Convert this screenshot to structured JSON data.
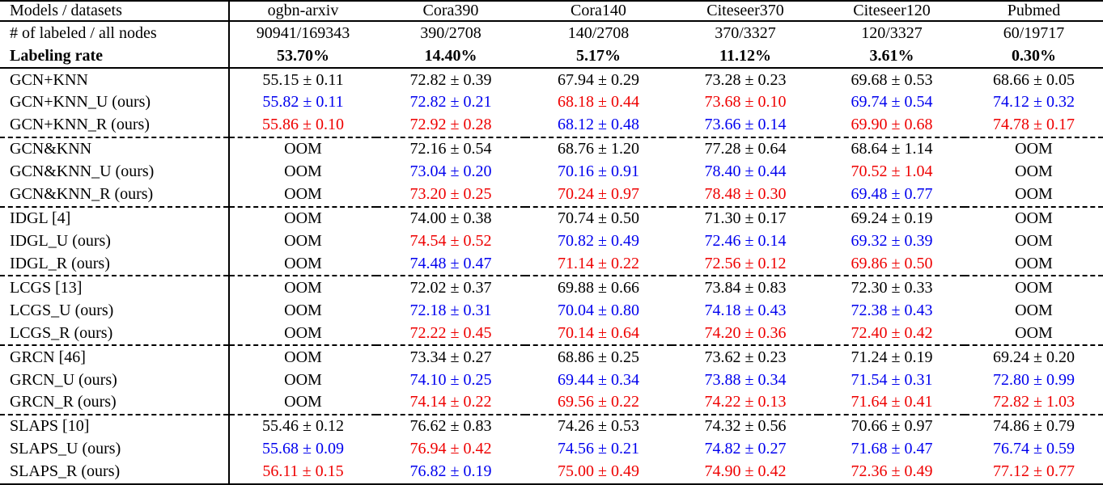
{
  "colors": {
    "black": "#000000",
    "blue": "#0000ee",
    "red": "#ee0000"
  },
  "table": {
    "columns": [
      "Models / datasets",
      "ogbn-arxiv",
      "Cora390",
      "Cora140",
      "Citeseer370",
      "Citeseer120",
      "Pubmed"
    ],
    "info_rows": [
      {
        "label": "# of labeled / all nodes",
        "bold": false,
        "values": [
          "90941/169343",
          "390/2708",
          "140/2708",
          "370/3327",
          "120/3327",
          "60/19717"
        ]
      },
      {
        "label": "Labeling rate",
        "bold": true,
        "values": [
          "53.70%",
          "14.40%",
          "5.17%",
          "11.12%",
          "3.61%",
          "0.30%"
        ]
      }
    ],
    "groups": [
      {
        "rows": [
          {
            "label": "GCN+KNN",
            "cells": [
              {
                "v": "55.15 ± 0.11",
                "c": "black"
              },
              {
                "v": "72.82 ± 0.39",
                "c": "black"
              },
              {
                "v": "67.94 ± 0.29",
                "c": "black"
              },
              {
                "v": "73.28 ± 0.23",
                "c": "black"
              },
              {
                "v": "69.68 ± 0.53",
                "c": "black"
              },
              {
                "v": "68.66 ± 0.05",
                "c": "black"
              }
            ]
          },
          {
            "label": "GCN+KNN_U (ours)",
            "cells": [
              {
                "v": "55.82 ± 0.11",
                "c": "blue"
              },
              {
                "v": "72.82 ± 0.21",
                "c": "blue"
              },
              {
                "v": "68.18 ± 0.44",
                "c": "red"
              },
              {
                "v": "73.68 ± 0.10",
                "c": "red"
              },
              {
                "v": "69.74 ± 0.54",
                "c": "blue"
              },
              {
                "v": "74.12 ± 0.32",
                "c": "blue"
              }
            ]
          },
          {
            "label": "GCN+KNN_R (ours)",
            "cells": [
              {
                "v": "55.86 ± 0.10",
                "c": "red"
              },
              {
                "v": "72.92 ± 0.28",
                "c": "red"
              },
              {
                "v": "68.12 ± 0.48",
                "c": "blue"
              },
              {
                "v": "73.66 ± 0.14",
                "c": "blue"
              },
              {
                "v": "69.90 ± 0.68",
                "c": "red"
              },
              {
                "v": "74.78 ± 0.17",
                "c": "red"
              }
            ]
          }
        ]
      },
      {
        "rows": [
          {
            "label": "GCN&KNN",
            "cells": [
              {
                "v": "OOM",
                "c": "black"
              },
              {
                "v": "72.16 ± 0.54",
                "c": "black"
              },
              {
                "v": "68.76 ± 1.20",
                "c": "black"
              },
              {
                "v": "77.28 ± 0.64",
                "c": "black"
              },
              {
                "v": "68.64 ± 1.14",
                "c": "black"
              },
              {
                "v": "OOM",
                "c": "black"
              }
            ]
          },
          {
            "label": "GCN&KNN_U (ours)",
            "cells": [
              {
                "v": "OOM",
                "c": "black"
              },
              {
                "v": "73.04 ± 0.20",
                "c": "blue"
              },
              {
                "v": "70.16 ± 0.91",
                "c": "blue"
              },
              {
                "v": "78.40 ± 0.44",
                "c": "blue"
              },
              {
                "v": "70.52 ± 1.04",
                "c": "red"
              },
              {
                "v": "OOM",
                "c": "black"
              }
            ]
          },
          {
            "label": "GCN&KNN_R (ours)",
            "cells": [
              {
                "v": "OOM",
                "c": "black"
              },
              {
                "v": "73.20 ± 0.25",
                "c": "red"
              },
              {
                "v": "70.24 ± 0.97",
                "c": "red"
              },
              {
                "v": "78.48 ± 0.30",
                "c": "red"
              },
              {
                "v": "69.48 ± 0.77",
                "c": "blue"
              },
              {
                "v": "OOM",
                "c": "black"
              }
            ]
          }
        ]
      },
      {
        "rows": [
          {
            "label": "IDGL [4]",
            "cells": [
              {
                "v": "OOM",
                "c": "black"
              },
              {
                "v": "74.00 ± 0.38",
                "c": "black"
              },
              {
                "v": "70.74 ± 0.50",
                "c": "black"
              },
              {
                "v": "71.30 ± 0.17",
                "c": "black"
              },
              {
                "v": "69.24 ± 0.19",
                "c": "black"
              },
              {
                "v": "OOM",
                "c": "black"
              }
            ]
          },
          {
            "label": "IDGL_U (ours)",
            "cells": [
              {
                "v": "OOM",
                "c": "black"
              },
              {
                "v": "74.54 ± 0.52",
                "c": "red"
              },
              {
                "v": "70.82 ± 0.49",
                "c": "blue"
              },
              {
                "v": "72.46 ± 0.14",
                "c": "blue"
              },
              {
                "v": "69.32 ± 0.39",
                "c": "blue"
              },
              {
                "v": "OOM",
                "c": "black"
              }
            ]
          },
          {
            "label": "IDGL_R (ours)",
            "cells": [
              {
                "v": "OOM",
                "c": "black"
              },
              {
                "v": "74.48 ± 0.47",
                "c": "blue"
              },
              {
                "v": "71.14 ± 0.22",
                "c": "red"
              },
              {
                "v": "72.56 ± 0.12",
                "c": "red"
              },
              {
                "v": "69.86 ± 0.50",
                "c": "red"
              },
              {
                "v": "OOM",
                "c": "black"
              }
            ]
          }
        ]
      },
      {
        "rows": [
          {
            "label": "LCGS [13]",
            "cells": [
              {
                "v": "OOM",
                "c": "black"
              },
              {
                "v": "72.02 ± 0.37",
                "c": "black"
              },
              {
                "v": "69.88 ± 0.66",
                "c": "black"
              },
              {
                "v": "73.84 ± 0.83",
                "c": "black"
              },
              {
                "v": "72.30 ± 0.33",
                "c": "black"
              },
              {
                "v": "OOM",
                "c": "black"
              }
            ]
          },
          {
            "label": "LCGS_U (ours)",
            "cells": [
              {
                "v": "OOM",
                "c": "black"
              },
              {
                "v": "72.18 ± 0.31",
                "c": "blue"
              },
              {
                "v": "70.04 ± 0.80",
                "c": "blue"
              },
              {
                "v": "74.18 ± 0.43",
                "c": "blue"
              },
              {
                "v": "72.38 ± 0.43",
                "c": "blue"
              },
              {
                "v": "OOM",
                "c": "black"
              }
            ]
          },
          {
            "label": "LCGS_R (ours)",
            "cells": [
              {
                "v": "OOM",
                "c": "black"
              },
              {
                "v": "72.22 ± 0.45",
                "c": "red"
              },
              {
                "v": "70.14 ± 0.64",
                "c": "red"
              },
              {
                "v": "74.20 ± 0.36",
                "c": "red"
              },
              {
                "v": "72.40 ± 0.42",
                "c": "red"
              },
              {
                "v": "OOM",
                "c": "black"
              }
            ]
          }
        ]
      },
      {
        "rows": [
          {
            "label": "GRCN [46]",
            "cells": [
              {
                "v": "OOM",
                "c": "black"
              },
              {
                "v": "73.34 ± 0.27",
                "c": "black"
              },
              {
                "v": "68.86 ± 0.25",
                "c": "black"
              },
              {
                "v": "73.62 ± 0.23",
                "c": "black"
              },
              {
                "v": "71.24 ± 0.19",
                "c": "black"
              },
              {
                "v": "69.24 ± 0.20",
                "c": "black"
              }
            ]
          },
          {
            "label": "GRCN_U (ours)",
            "cells": [
              {
                "v": "OOM",
                "c": "black"
              },
              {
                "v": "74.10 ± 0.25",
                "c": "blue"
              },
              {
                "v": "69.44 ± 0.34",
                "c": "blue"
              },
              {
                "v": "73.88 ± 0.34",
                "c": "blue"
              },
              {
                "v": "71.54 ± 0.31",
                "c": "blue"
              },
              {
                "v": "72.80 ± 0.99",
                "c": "blue"
              }
            ]
          },
          {
            "label": "GRCN_R (ours)",
            "cells": [
              {
                "v": "OOM",
                "c": "black"
              },
              {
                "v": "74.14 ± 0.22",
                "c": "red"
              },
              {
                "v": "69.56 ± 0.22",
                "c": "red"
              },
              {
                "v": "74.22 ± 0.13",
                "c": "red"
              },
              {
                "v": "71.64 ± 0.41",
                "c": "red"
              },
              {
                "v": "72.82 ± 1.03",
                "c": "red"
              }
            ]
          }
        ]
      },
      {
        "rows": [
          {
            "label": "SLAPS [10]",
            "cells": [
              {
                "v": "55.46 ± 0.12",
                "c": "black"
              },
              {
                "v": "76.62 ± 0.83",
                "c": "black"
              },
              {
                "v": "74.26 ± 0.53",
                "c": "black"
              },
              {
                "v": "74.32 ± 0.56",
                "c": "black"
              },
              {
                "v": "70.66 ± 0.97",
                "c": "black"
              },
              {
                "v": "74.86 ± 0.79",
                "c": "black"
              }
            ]
          },
          {
            "label": "SLAPS_U (ours)",
            "cells": [
              {
                "v": "55.68 ± 0.09",
                "c": "blue"
              },
              {
                "v": "76.94 ± 0.42",
                "c": "red"
              },
              {
                "v": "74.56 ± 0.21",
                "c": "blue"
              },
              {
                "v": "74.82 ± 0.27",
                "c": "blue"
              },
              {
                "v": "71.68 ± 0.47",
                "c": "blue"
              },
              {
                "v": "76.74 ± 0.59",
                "c": "blue"
              }
            ]
          },
          {
            "label": "SLAPS_R (ours)",
            "cells": [
              {
                "v": "56.11 ± 0.15",
                "c": "red"
              },
              {
                "v": "76.82 ± 0.19",
                "c": "blue"
              },
              {
                "v": "75.00 ± 0.49",
                "c": "red"
              },
              {
                "v": "74.90 ± 0.42",
                "c": "red"
              },
              {
                "v": "72.36 ± 0.49",
                "c": "red"
              },
              {
                "v": "77.12 ± 0.77",
                "c": "red"
              }
            ]
          }
        ]
      }
    ]
  }
}
